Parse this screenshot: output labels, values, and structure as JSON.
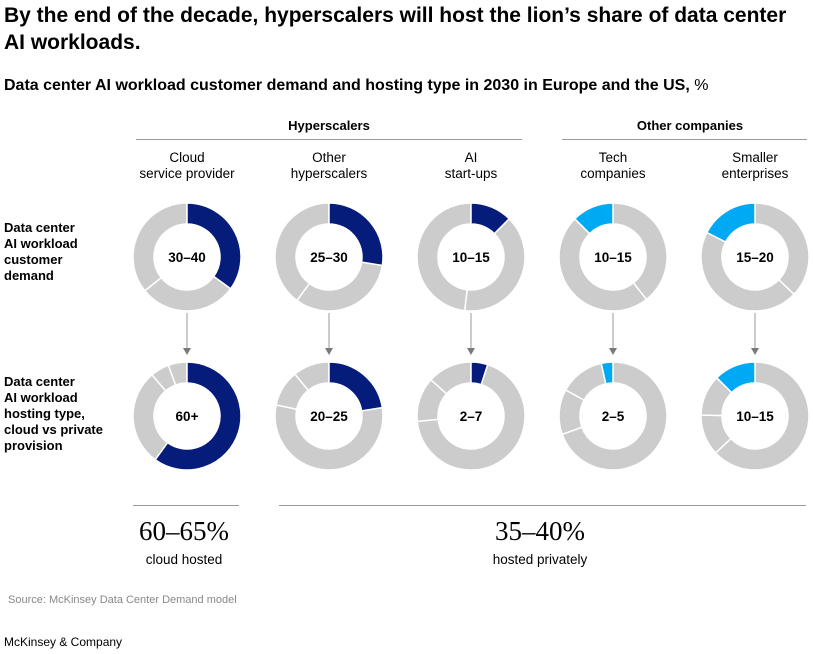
{
  "title": "By the end of the decade, hyperscalers will host the lion’s share of data center AI workloads.",
  "subtitle": "Data center AI workload customer demand and hosting type in 2030 in Europe and the US,",
  "subtitle_unit": "%",
  "groups": [
    {
      "label": "Hyperscalers"
    },
    {
      "label": "Other companies"
    }
  ],
  "columns": [
    {
      "label": "Cloud\nservice provider",
      "group": 0
    },
    {
      "label": "Other\nhyperscalers",
      "group": 0
    },
    {
      "label": "AI\nstart-ups",
      "group": 0
    },
    {
      "label": "Tech\ncompanies",
      "group": 1
    },
    {
      "label": "Smaller\nenterprises",
      "group": 1
    }
  ],
  "rows": [
    {
      "label": "Data center\nAI workload\ncustomer\ndemand"
    },
    {
      "label": "Data center\nAI workload\nhosting type,\ncloud vs private\nprovision"
    }
  ],
  "summary": [
    {
      "value": "60–65%",
      "caption": "cloud hosted"
    },
    {
      "value": "35–40%",
      "caption": "hosted privately"
    }
  ],
  "source": "Source: McKinsey Data Center Demand model",
  "brand": "McKinsey & Company",
  "colors": {
    "hyperscaler": "#051c7a",
    "other": "#00a9f4",
    "remainder": "#cccccc"
  },
  "chart_data": {
    "type": "donut-grid",
    "unit": "%",
    "demand": [
      {
        "label": "30–40",
        "low": 30,
        "high": 40,
        "value": 35,
        "color": "hyperscaler"
      },
      {
        "label": "25–30",
        "low": 25,
        "high": 30,
        "value": 27.5,
        "color": "hyperscaler"
      },
      {
        "label": "10–15",
        "low": 10,
        "high": 15,
        "value": 12.5,
        "color": "hyperscaler"
      },
      {
        "label": "10–15",
        "low": 10,
        "high": 15,
        "value": 12.5,
        "color": "other"
      },
      {
        "label": "15–20",
        "low": 15,
        "high": 20,
        "value": 17.5,
        "color": "other"
      }
    ],
    "hosting": [
      {
        "label": "60+",
        "low": 60,
        "high": 65,
        "value": 60,
        "color": "hyperscaler"
      },
      {
        "label": "20–25",
        "low": 20,
        "high": 25,
        "value": 22.5,
        "color": "hyperscaler"
      },
      {
        "label": "2–7",
        "low": 2,
        "high": 7,
        "value": 5,
        "color": "hyperscaler"
      },
      {
        "label": "2–5",
        "low": 2,
        "high": 5,
        "value": 3.5,
        "color": "other"
      },
      {
        "label": "10–15",
        "low": 10,
        "high": 15,
        "value": 12.5,
        "color": "other"
      }
    ]
  }
}
